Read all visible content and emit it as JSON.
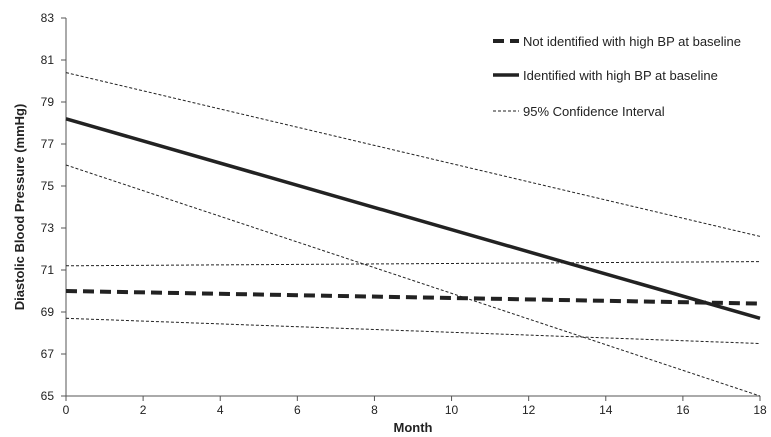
{
  "chart_data": {
    "type": "line",
    "title": "",
    "xlabel": "Month",
    "ylabel": "Diastolic Blood Pressure (mmHg)",
    "xlim": [
      0,
      18
    ],
    "ylim": [
      65,
      83
    ],
    "x_ticks": [
      0,
      2,
      4,
      6,
      8,
      10,
      12,
      14,
      16,
      18
    ],
    "y_ticks": [
      65,
      67,
      69,
      71,
      73,
      75,
      77,
      79,
      81,
      83
    ],
    "grid": false,
    "legend_position": "top-right",
    "series": [
      {
        "name": "Not identified with high BP at baseline",
        "style": "dashed-thick",
        "color": "#222222",
        "x": [
          0,
          18
        ],
        "y": [
          70.0,
          69.4
        ]
      },
      {
        "name": "Identified with high BP at baseline",
        "style": "solid-thick",
        "color": "#222222",
        "x": [
          0,
          18
        ],
        "y": [
          78.2,
          68.7
        ]
      },
      {
        "name": "95% Confidence Interval",
        "style": "dashed-thin",
        "color": "#222222",
        "x": [
          0,
          18
        ],
        "y": [
          80.4,
          72.6
        ]
      },
      {
        "name": "",
        "style": "dashed-thin",
        "color": "#222222",
        "x": [
          0,
          18
        ],
        "y": [
          76.0,
          65.0
        ]
      },
      {
        "name": "",
        "style": "dashed-thin",
        "color": "#222222",
        "x": [
          0,
          18
        ],
        "y": [
          71.2,
          71.4
        ]
      },
      {
        "name": "",
        "style": "dashed-thin",
        "color": "#222222",
        "x": [
          0,
          18
        ],
        "y": [
          68.7,
          67.5
        ]
      }
    ],
    "legend": [
      {
        "label": "Not identified with high BP at baseline",
        "style": "dashed-thick"
      },
      {
        "label": "Identified with high BP at baseline",
        "style": "solid-thick"
      },
      {
        "label": "95% Confidence Interval",
        "style": "dashed-thin"
      }
    ]
  }
}
